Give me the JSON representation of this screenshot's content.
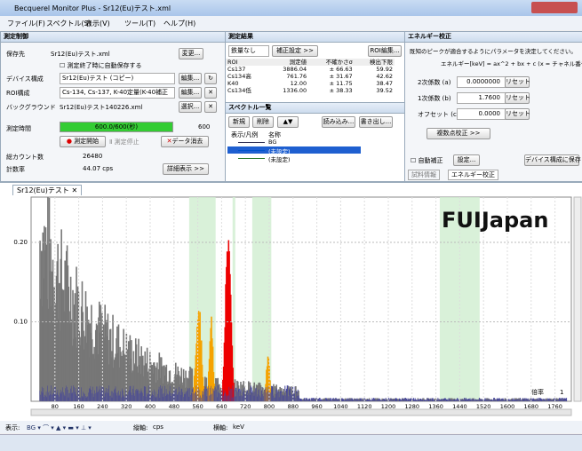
{
  "window": {
    "title": "Becquerel Monitor Plus - Sr12(Eu)テスト.xml"
  },
  "menu": [
    "ファイル(F)",
    "スペクトル(S)",
    "表示(V)",
    "ツール(T)",
    "ヘルプ(H)"
  ],
  "control": {
    "title": "測定制御",
    "save_label": "保存先",
    "save_file": "Sr12(Eu)テスト.xml",
    "change_btn": "変更...",
    "autosave": "測定終了時に自動保存する",
    "device_label": "デバイス構成",
    "device_value": "Sr12(Eu)テスト (コピー)",
    "device_edit": "編集...",
    "roi_label": "ROI構成",
    "roi_value": "Cs-134, Cs-137, K-40定量(K-40補正",
    "roi_edit": "編集...",
    "bg_label": "バックグラウンド",
    "bg_file": "Sr12(Eu)テスト140226.xml",
    "select_btn": "選択...",
    "time_label": "測定時間",
    "progress": "600.0/600(秒)",
    "time_max": "600",
    "start_btn": "測定開始",
    "stop_btn": "測定停止",
    "clear_btn": "データ消去",
    "total_label": "総カウント数",
    "total_value": "26480",
    "rate_label": "計数率",
    "rate_value": "44.07 cps",
    "detail_btn": "詳細表示 >>"
  },
  "results": {
    "title": "測定結果",
    "dropdown": "鉄量なし",
    "correction_btn": "補正設定 >>",
    "roi_edit_btn": "ROI編集...",
    "headers": [
      "ROI",
      "測定値",
      "不確かさσ",
      "検出下限"
    ],
    "rows": [
      [
        "Cs137",
        "3886.04",
        "± 66.63",
        "59.92"
      ],
      [
        "Cs134高",
        "761.76",
        "± 31.67",
        "42.62"
      ],
      [
        "K40",
        "12.00",
        "± 11.75",
        "38.47"
      ],
      [
        "Cs134低",
        "1336.00",
        "± 38.33",
        "39.52"
      ]
    ]
  },
  "spectrum_list": {
    "title": "スペクトル一覧",
    "new_btn": "新規",
    "delete_btn": "削除",
    "load_btn": "読み込み...",
    "export_btn": "書き出し...",
    "headers": [
      "表示/凡例",
      "名称"
    ],
    "rows": [
      "BG",
      "(未設定)",
      "(未設定)"
    ]
  },
  "energy": {
    "title": "エネルギー校正",
    "instruction": "既知のピークが適合するようにパラメータを決定してください。",
    "formula": "エネルギー[keV] = ax^2 + bx + c  (x = チャネル番号)",
    "params": [
      {
        "label": "2次係数 (a)",
        "value": "0.0000000",
        "reset": "リセット"
      },
      {
        "label": "1次係数 (b)",
        "value": "1.7600",
        "reset": "リセット"
      },
      {
        "label": "オフセット (c)",
        "value": "0.0000",
        "reset": "リセット"
      }
    ],
    "multi_btn": "複数点校正 >>",
    "auto_label": "自動補正",
    "settings_btn": "設定...",
    "save_btn": "デバイス構成に保存",
    "tabs": [
      "試料情報",
      "エネルギー校正"
    ]
  },
  "spectrum_tab": {
    "title": "Sr12(Eu)テスト"
  },
  "chart": {
    "overlay": "FUIJapan",
    "xlim": [
      0,
      1815
    ],
    "ylim": [
      0,
      0.257
    ],
    "yticks": [
      {
        "value": 0.1,
        "label": "0.10"
      },
      {
        "value": 0.2,
        "label": "0.20"
      }
    ],
    "xticks": [
      80,
      160,
      240,
      320,
      400,
      480,
      560,
      640,
      720,
      800,
      880,
      960,
      1040,
      1120,
      1200,
      1280,
      1360,
      1440,
      1520,
      1600,
      1680,
      1760
    ]
  },
  "toolbar": {
    "display_label": "表示:",
    "vertical_label": "縦軸:",
    "vertical_unit": "cps",
    "horizontal_label": "横軸:",
    "horizontal_unit": "keV",
    "scale_label": "倍率",
    "scale_value": "1"
  }
}
